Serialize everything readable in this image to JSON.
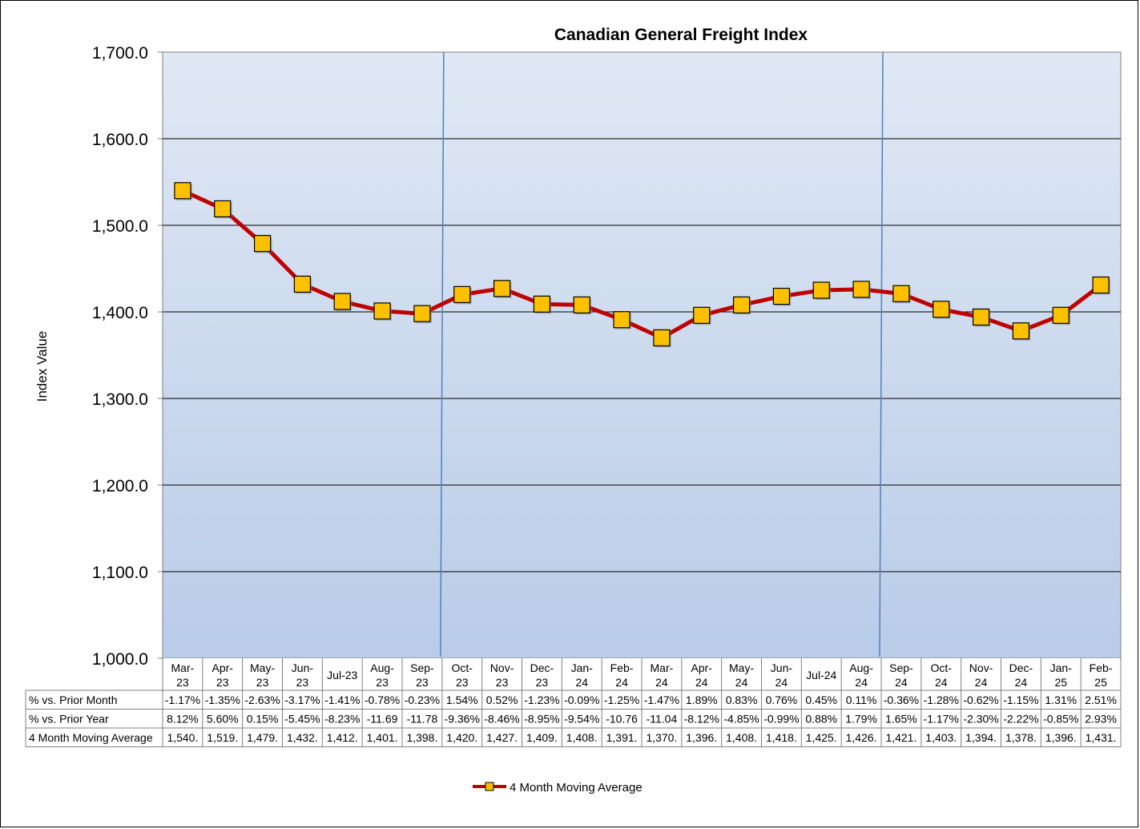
{
  "chart_data": {
    "type": "line",
    "title": "Canadian General Freight Index",
    "xlabel": "",
    "ylabel": "Index Value",
    "ylim": [
      1000,
      1700
    ],
    "yticks": [
      "1,000.0",
      "1,100.0",
      "1,200.0",
      "1,300.0",
      "1,400.0",
      "1,500.0",
      "1,600.0",
      "1,700.0"
    ],
    "grid": true,
    "legend_position": "bottom",
    "categories": [
      [
        "Mar-",
        "23"
      ],
      [
        "Apr-",
        "23"
      ],
      [
        "May-",
        "23"
      ],
      [
        "Jun-",
        "23"
      ],
      [
        "Jul-23"
      ],
      [
        "Aug-",
        "23"
      ],
      [
        "Sep-",
        "23"
      ],
      [
        "Oct-",
        "23"
      ],
      [
        "Nov-",
        "23"
      ],
      [
        "Dec-",
        "23"
      ],
      [
        "Jan-",
        "24"
      ],
      [
        "Feb-",
        "24"
      ],
      [
        "Mar-",
        "24"
      ],
      [
        "Apr-",
        "24"
      ],
      [
        "May-",
        "24"
      ],
      [
        "Jun-",
        "24"
      ],
      [
        "Jul-24"
      ],
      [
        "Aug-",
        "24"
      ],
      [
        "Sep-",
        "24"
      ],
      [
        "Oct-",
        "24"
      ],
      [
        "Nov-",
        "24"
      ],
      [
        "Dec-",
        "24"
      ],
      [
        "Jan-",
        "25"
      ],
      [
        "Feb-",
        "25"
      ]
    ],
    "year_divider_after": [
      "Sep-23",
      "Aug-24"
    ],
    "series": [
      {
        "name": "4 Month Moving Average",
        "color": "#C00000",
        "marker_color": "#FFC000",
        "values": [
          1540,
          1519,
          1479,
          1432,
          1412,
          1401,
          1398,
          1420,
          1427,
          1409,
          1408,
          1391,
          1370,
          1396,
          1408,
          1418,
          1425,
          1426,
          1421,
          1403,
          1394,
          1378,
          1396,
          1431
        ]
      }
    ],
    "table": [
      {
        "label": "% vs. Prior Month",
        "values": [
          "-1.17%",
          "-1.35%",
          "-2.63%",
          "-3.17%",
          "-1.41%",
          "-0.78%",
          "-0.23%",
          "1.54%",
          "0.52%",
          "-1.23%",
          "-0.09%",
          "-1.25%",
          "-1.47%",
          "1.89%",
          "0.83%",
          "0.76%",
          "0.45%",
          "0.11%",
          "-0.36%",
          "-1.28%",
          "-0.62%",
          "-1.15%",
          "1.31%",
          "2.51%"
        ]
      },
      {
        "label": "% vs. Prior Year",
        "values": [
          "8.12%",
          "5.60%",
          "0.15%",
          "-5.45%",
          "-8.23%",
          "-11.69",
          "-11.78",
          "-9.36%",
          "-8.46%",
          "-8.95%",
          "-9.54%",
          "-10.76",
          "-11.04",
          "-8.12%",
          "-4.85%",
          "-0.99%",
          "0.88%",
          "1.79%",
          "1.65%",
          "-1.17%",
          "-2.30%",
          "-2.22%",
          "-0.85%",
          "2.93%"
        ]
      },
      {
        "label": "4 Month Moving Average",
        "values": [
          "1,540.",
          "1,519.",
          "1,479.",
          "1,432.",
          "1,412.",
          "1,401.",
          "1,398.",
          "1,420.",
          "1,427.",
          "1,409.",
          "1,408.",
          "1,391.",
          "1,370.",
          "1,396.",
          "1,408.",
          "1,418.",
          "1,425.",
          "1,426.",
          "1,421.",
          "1,403.",
          "1,394.",
          "1,378.",
          "1,396.",
          "1,431."
        ]
      }
    ],
    "colors": {
      "plot_top": "#E0E8F4",
      "plot_bottom": "#B9CCE8",
      "plot_border": "#7F7F7F",
      "gridline": "#000000",
      "divider": "#4F81BD"
    }
  }
}
